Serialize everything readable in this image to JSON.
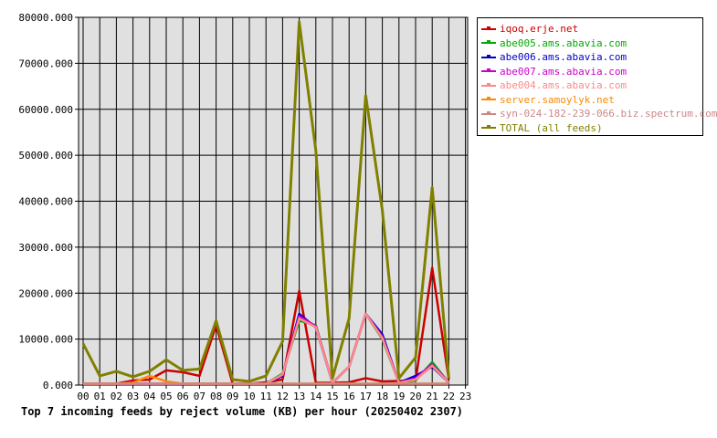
{
  "chart_data": {
    "type": "line",
    "title": "Top 7 incoming feeds by reject volume (KB) per hour (20250402 2307)",
    "categories": [
      "00",
      "01",
      "02",
      "03",
      "04",
      "05",
      "06",
      "07",
      "08",
      "09",
      "10",
      "11",
      "12",
      "13",
      "14",
      "15",
      "16",
      "17",
      "18",
      "19",
      "20",
      "21",
      "22",
      "23"
    ],
    "y_ticks": [
      "0.000",
      "10000.000",
      "20000.000",
      "30000.000",
      "40000.000",
      "50000.000",
      "60000.000",
      "70000.000",
      "80000.000"
    ],
    "ylim": [
      0,
      80000
    ],
    "grid": true,
    "legend_position": "top-right",
    "plot_background": "#e0e0e0",
    "series": [
      {
        "name": "iqoq.erje.net",
        "color": "#cc0000",
        "values": [
          300,
          300,
          300,
          1000,
          1200,
          3200,
          2800,
          2000,
          13000,
          300,
          300,
          600,
          1200,
          20500,
          500,
          500,
          600,
          1500,
          800,
          900,
          1000,
          25500,
          1200,
          null
        ]
      },
      {
        "name": "abe005.ams.abavia.com",
        "color": "#00aa00",
        "values": [
          300,
          300,
          300,
          300,
          300,
          300,
          300,
          300,
          300,
          300,
          300,
          300,
          2500,
          14000,
          13000,
          500,
          4000,
          15500,
          10000,
          500,
          1000,
          5000,
          500,
          null
        ]
      },
      {
        "name": "abe006.ams.abavia.com",
        "color": "#0000cc",
        "values": [
          300,
          300,
          300,
          300,
          300,
          300,
          300,
          300,
          300,
          300,
          300,
          300,
          2000,
          15500,
          12500,
          500,
          4000,
          15500,
          11000,
          500,
          2000,
          4000,
          500,
          null
        ]
      },
      {
        "name": "abe007.ams.abavia.com",
        "color": "#cc00cc",
        "values": [
          300,
          300,
          300,
          300,
          300,
          300,
          300,
          300,
          300,
          300,
          300,
          300,
          2200,
          15000,
          12800,
          500,
          4000,
          15500,
          10500,
          500,
          1500,
          4500,
          500,
          null
        ]
      },
      {
        "name": "abe004.ams.abavia.com",
        "color": "#ff8888",
        "values": [
          300,
          300,
          300,
          300,
          300,
          300,
          300,
          300,
          300,
          300,
          300,
          300,
          2300,
          14500,
          12600,
          500,
          4000,
          15500,
          10200,
          500,
          1200,
          4200,
          500,
          null
        ]
      },
      {
        "name": "server.samoylyk.net",
        "color": "#ff8800",
        "values": [
          300,
          300,
          300,
          500,
          2000,
          800,
          300,
          300,
          300,
          300,
          300,
          300,
          300,
          300,
          300,
          300,
          300,
          300,
          300,
          300,
          300,
          300,
          300,
          null
        ]
      },
      {
        "name": "syn-024-182-239-066.biz.spectrum.com",
        "color": "#cc8888",
        "values": [
          300,
          300,
          300,
          300,
          300,
          300,
          300,
          300,
          300,
          300,
          300,
          300,
          300,
          300,
          300,
          300,
          300,
          300,
          300,
          300,
          300,
          300,
          300,
          null
        ]
      },
      {
        "name": "TOTAL (all feeds)",
        "color": "#808000",
        "values": [
          9000,
          2000,
          3000,
          1800,
          3000,
          5500,
          3200,
          3500,
          14000,
          1200,
          800,
          2000,
          9500,
          79000,
          51000,
          1500,
          14500,
          63000,
          38000,
          1500,
          6000,
          43000,
          1500,
          null
        ]
      }
    ]
  }
}
